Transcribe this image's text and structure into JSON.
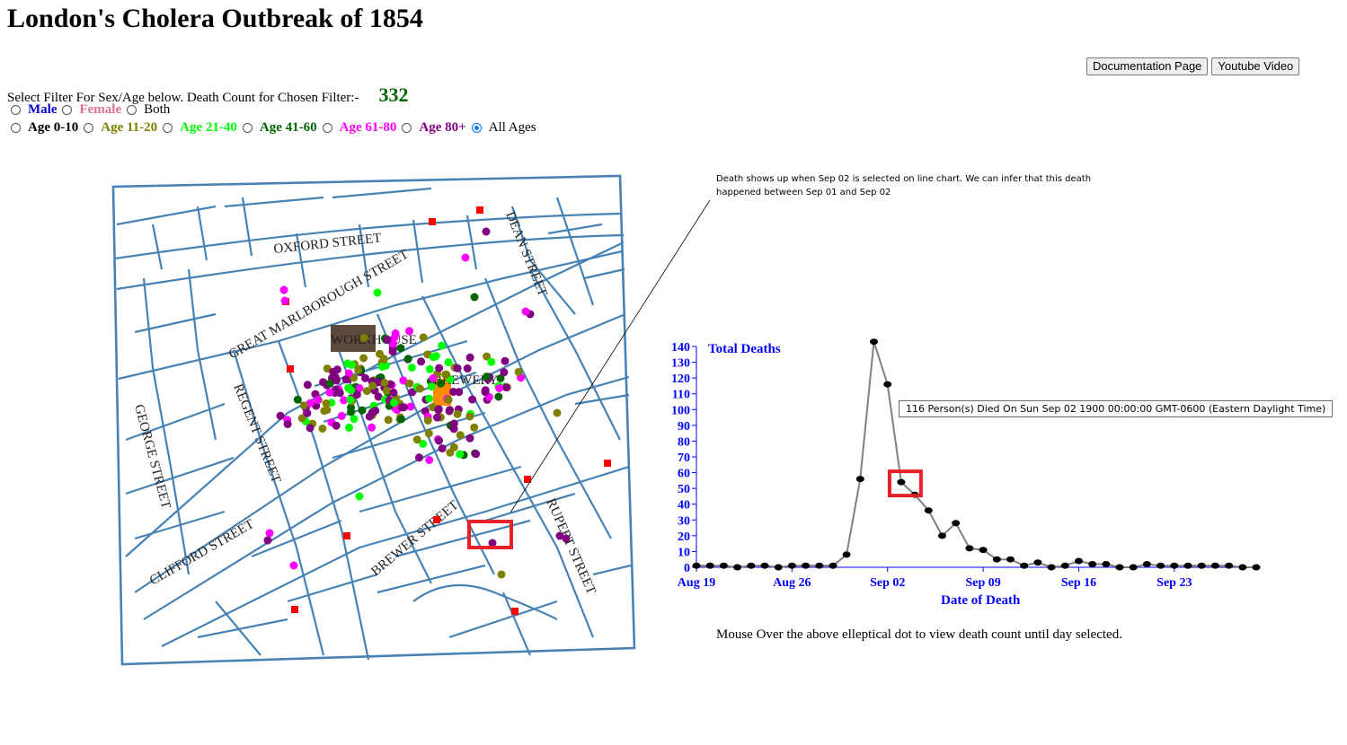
{
  "title": "London's Cholera Outbreak of 1854",
  "buttons": {
    "documentation": "Documentation Page",
    "youtube": "Youtube Video"
  },
  "filter": {
    "label": "Select Filter For Sex/Age below. Death Count for Chosen Filter:-",
    "count": "332"
  },
  "sex_options": [
    {
      "label": "Male",
      "color": "#0000cd",
      "selected": false
    },
    {
      "label": "Female",
      "color": "#db7093",
      "selected": false
    },
    {
      "label": "Both",
      "color": "#000000",
      "selected": false
    }
  ],
  "age_options": [
    {
      "label": "Age 0-10",
      "color": "#000000"
    },
    {
      "label": "Age 11-20",
      "color": "#808000"
    },
    {
      "label": "Age 21-40",
      "color": "#00ff00"
    },
    {
      "label": "Age 41-60",
      "color": "#006400"
    },
    {
      "label": "Age 61-80",
      "color": "#ff00ff"
    },
    {
      "label": "Age 80+",
      "color": "#800080"
    },
    {
      "label": "All Ages",
      "color": "#000000",
      "selected": true
    }
  ],
  "map": {
    "streets": [
      "OXFORD STREET",
      "DEAN STREET",
      "GREAT MARLBOROUGH STREET",
      "REGENT STREET",
      "GEORGE STREET",
      "CLIFFORD STREET",
      "BREWER STREET",
      "RUPERT STREET"
    ],
    "buildings": [
      "WORKHOUSE",
      "BREWERY"
    ],
    "colors": {
      "streets": "#4682b4",
      "pump": "#ff0000",
      "workhouse": "#5c4a3c",
      "brewery": "#ff8c00",
      "highlight": "#e8202a"
    }
  },
  "annotation": "Death shows up when Sep 02 is selected on line chart. We can infer that this death happened between Sep 01 and Sep 02",
  "tooltip": "116 Person(s) Died On Sun Sep 02 1900 00:00:00 GMT-0600 (Eastern Daylight Time)",
  "help_text": "Mouse Over the above elleptical dot to view death count until day selected.",
  "chart_data": {
    "type": "line",
    "ylabel": "Total Deaths",
    "xlabel": "Date of Death",
    "ylim": [
      0,
      140
    ],
    "yticks": [
      0,
      10,
      20,
      30,
      40,
      50,
      60,
      70,
      80,
      90,
      100,
      110,
      120,
      130,
      140
    ],
    "xticks": [
      "Aug 19",
      "Aug 26",
      "Sep 02",
      "Sep 09",
      "Sep 16",
      "Sep 23"
    ],
    "x_start": "Aug 19",
    "values": [
      1,
      1,
      1,
      0,
      1,
      1,
      0,
      1,
      1,
      1,
      1,
      8,
      56,
      143,
      116,
      54,
      46,
      36,
      20,
      28,
      12,
      11,
      5,
      5,
      1,
      3,
      0,
      1,
      4,
      2,
      2,
      0,
      0,
      2,
      1,
      1,
      1,
      1,
      1,
      1,
      0,
      0
    ],
    "highlight_date": "Sep 02",
    "colors": {
      "line": "#808080",
      "axis": "#0000ff",
      "dot": "#000000"
    }
  }
}
